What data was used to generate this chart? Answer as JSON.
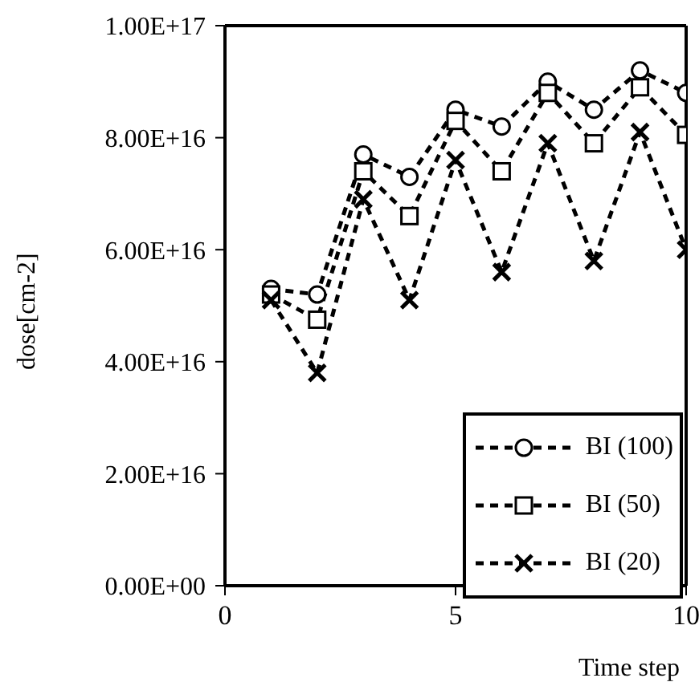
{
  "chart_data": {
    "type": "line",
    "xlabel": "Time step",
    "ylabel": "dose[cm-2]",
    "x": [
      1,
      2,
      3,
      4,
      5,
      6,
      7,
      8,
      9,
      10
    ],
    "series": [
      {
        "name": "BI (100)",
        "color": "#000000",
        "marker": "circle",
        "values": [
          5.3e+16,
          5.2e+16,
          7.7e+16,
          7.3e+16,
          8.5e+16,
          8.2e+16,
          9e+16,
          8.5e+16,
          9.2e+16,
          8.8e+16
        ]
      },
      {
        "name": "BI (50)",
        "color": "#000000",
        "marker": "square",
        "values": [
          5.2e+16,
          4.75e+16,
          7.4e+16,
          6.6e+16,
          8.3e+16,
          7.4e+16,
          8.8e+16,
          7.9e+16,
          8.9e+16,
          8.05e+16
        ]
      },
      {
        "name": "BI (20)",
        "color": "#000000",
        "marker": "cross",
        "values": [
          5.1e+16,
          3.8e+16,
          6.9e+16,
          5.1e+16,
          7.6e+16,
          5.6e+16,
          7.9e+16,
          5.8e+16,
          8.1e+16,
          6e+16
        ]
      }
    ],
    "xlim": [
      0,
      10
    ],
    "xticks": [
      0,
      5,
      10
    ],
    "ylim": [
      0,
      1e+17
    ],
    "yticks": [
      {
        "value": 0,
        "label": "0.00E+00"
      },
      {
        "value": 2e+16,
        "label": "2.00E+16"
      },
      {
        "value": 4e+16,
        "label": "4.00E+16"
      },
      {
        "value": 6e+16,
        "label": "6.00E+16"
      },
      {
        "value": 8e+16,
        "label": "8.00E+16"
      },
      {
        "value": 1e+17,
        "label": "1.00E+17"
      }
    ],
    "grid": false,
    "legend": "bottom right",
    "line_style": "dashed"
  }
}
